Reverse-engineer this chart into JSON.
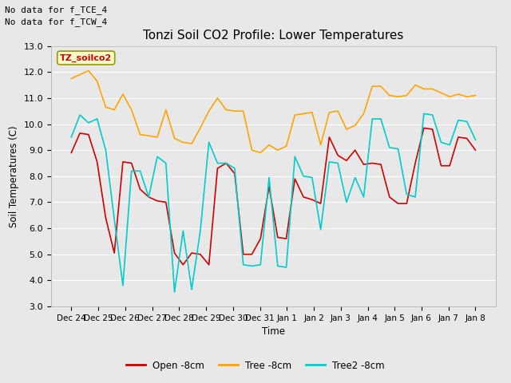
{
  "title": "Tonzi Soil CO2 Profile: Lower Temperatures",
  "ylabel": "Soil Temperatures (C)",
  "xlabel": "Time",
  "top_note1": "No data for f_TCE_4",
  "top_note2": "No data for f_TCW_4",
  "legend_label": "TZ_soilco2",
  "ylim": [
    3.0,
    13.0
  ],
  "yticks": [
    3.0,
    4.0,
    5.0,
    6.0,
    7.0,
    8.0,
    9.0,
    10.0,
    11.0,
    12.0,
    13.0
  ],
  "x_labels": [
    "Dec 24",
    "Dec 25",
    "Dec 26",
    "Dec 27",
    "Dec 28",
    "Dec 29",
    "Dec 30",
    "Dec 31",
    "Jan 1",
    "Jan 2",
    "Jan 3",
    "Jan 4",
    "Jan 5",
    "Jan 6",
    "Jan 7",
    "Jan 8"
  ],
  "bg_color": "#e8e8e8",
  "grid_color": "#ffffff",
  "fig_color": "#e8e8e8",
  "open_color": "#cc0000",
  "tree_color": "#ffa500",
  "tree2_color": "#00cccc",
  "open_label": "Open -8cm",
  "tree_label": "Tree -8cm",
  "tree2_label": "Tree2 -8cm",
  "open_data": [
    8.9,
    9.65,
    9.6,
    8.55,
    6.4,
    5.05,
    8.55,
    8.5,
    7.5,
    7.2,
    7.05,
    7.0,
    5.05,
    4.6,
    5.05,
    5.0,
    4.6,
    8.3,
    8.5,
    8.1,
    5.0,
    5.0,
    5.6,
    7.6,
    5.65,
    5.6,
    7.9,
    7.2,
    7.1,
    6.95,
    9.5,
    8.8,
    8.6,
    9.0,
    8.45,
    8.5,
    8.45,
    7.2,
    6.95,
    6.95,
    8.5,
    9.85,
    9.8,
    8.4,
    8.4,
    9.5,
    9.45,
    9.0
  ],
  "tree_data": [
    11.75,
    11.9,
    12.05,
    11.65,
    10.65,
    10.55,
    11.15,
    10.55,
    9.6,
    9.55,
    9.5,
    10.55,
    9.45,
    9.3,
    9.25,
    9.85,
    10.5,
    11.0,
    10.55,
    10.5,
    10.5,
    9.0,
    8.9,
    9.2,
    9.0,
    9.15,
    10.35,
    10.4,
    10.45,
    9.2,
    10.45,
    10.5,
    9.8,
    9.95,
    10.4,
    11.45,
    11.45,
    11.1,
    11.05,
    11.1,
    11.5,
    11.35,
    11.35,
    11.2,
    11.05,
    11.15,
    11.05,
    11.1
  ],
  "tree2_data": [
    9.5,
    10.35,
    10.05,
    10.2,
    9.0,
    6.35,
    3.8,
    8.2,
    8.2,
    7.2,
    8.75,
    8.5,
    3.55,
    5.9,
    3.65,
    5.9,
    9.3,
    8.5,
    8.5,
    8.3,
    4.6,
    4.55,
    4.6,
    7.95,
    4.55,
    4.5,
    8.75,
    8.0,
    7.95,
    5.95,
    8.55,
    8.5,
    7.0,
    7.95,
    7.2,
    10.2,
    10.2,
    9.1,
    9.05,
    7.3,
    7.2,
    10.4,
    10.35,
    9.3,
    9.2,
    10.15,
    10.1,
    9.4
  ]
}
